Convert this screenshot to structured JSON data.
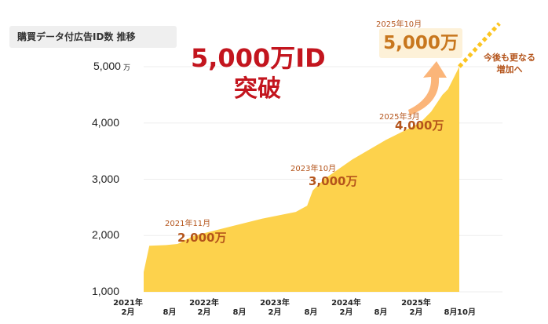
{
  "title_badge": "購買データ付広告ID数 推移",
  "headline": {
    "line1": "5,000万ID",
    "line2": "突破"
  },
  "colors": {
    "area": "#fdd24c",
    "arrow": "#fbb579",
    "headline": "#c3151e",
    "annotation": "#b4541b",
    "future_dots": "#fcc521"
  },
  "chart_data": {
    "type": "area",
    "title": "購買データ付広告ID数 推移",
    "y_unit": "万",
    "ylim": [
      1000,
      5000
    ],
    "yticks": [
      "1,000",
      "2,000",
      "3,000",
      "4,000",
      "5,000"
    ],
    "xtick_labels": [
      "2021年\n2月",
      "8月",
      "2022年\n2月",
      "8月",
      "2023年\n2月",
      "8月",
      "2024年\n2月",
      "8月",
      "2025年\n2月",
      "8月",
      "10月"
    ],
    "series": [
      {
        "values_desc": "cumulative ad IDs (万)",
        "x": [
          "2021-02",
          "2021-03",
          "2021-06",
          "2021-08",
          "2021-11",
          "2022-05",
          "2022-11",
          "2023-05",
          "2023-07",
          "2023-08",
          "2023-10",
          "2024-03",
          "2024-09",
          "2025-01",
          "2025-03",
          "2025-05",
          "2025-07",
          "2025-08",
          "2025-10"
        ],
        "y": [
          1350,
          1820,
          1830,
          1850,
          2000,
          2150,
          2300,
          2420,
          2530,
          2800,
          3000,
          3350,
          3700,
          3900,
          4000,
          4200,
          4500,
          4600,
          5000
        ]
      }
    ],
    "annotations": [
      {
        "date": "2021年11月",
        "value": "2,000万"
      },
      {
        "date": "2023年10月",
        "value": "3,000万"
      },
      {
        "date": "2025年3月",
        "value": "4,000万"
      },
      {
        "date": "2025年10月",
        "value": "5,000万"
      }
    ],
    "future_note": "今後も更なる\n増加へ"
  }
}
